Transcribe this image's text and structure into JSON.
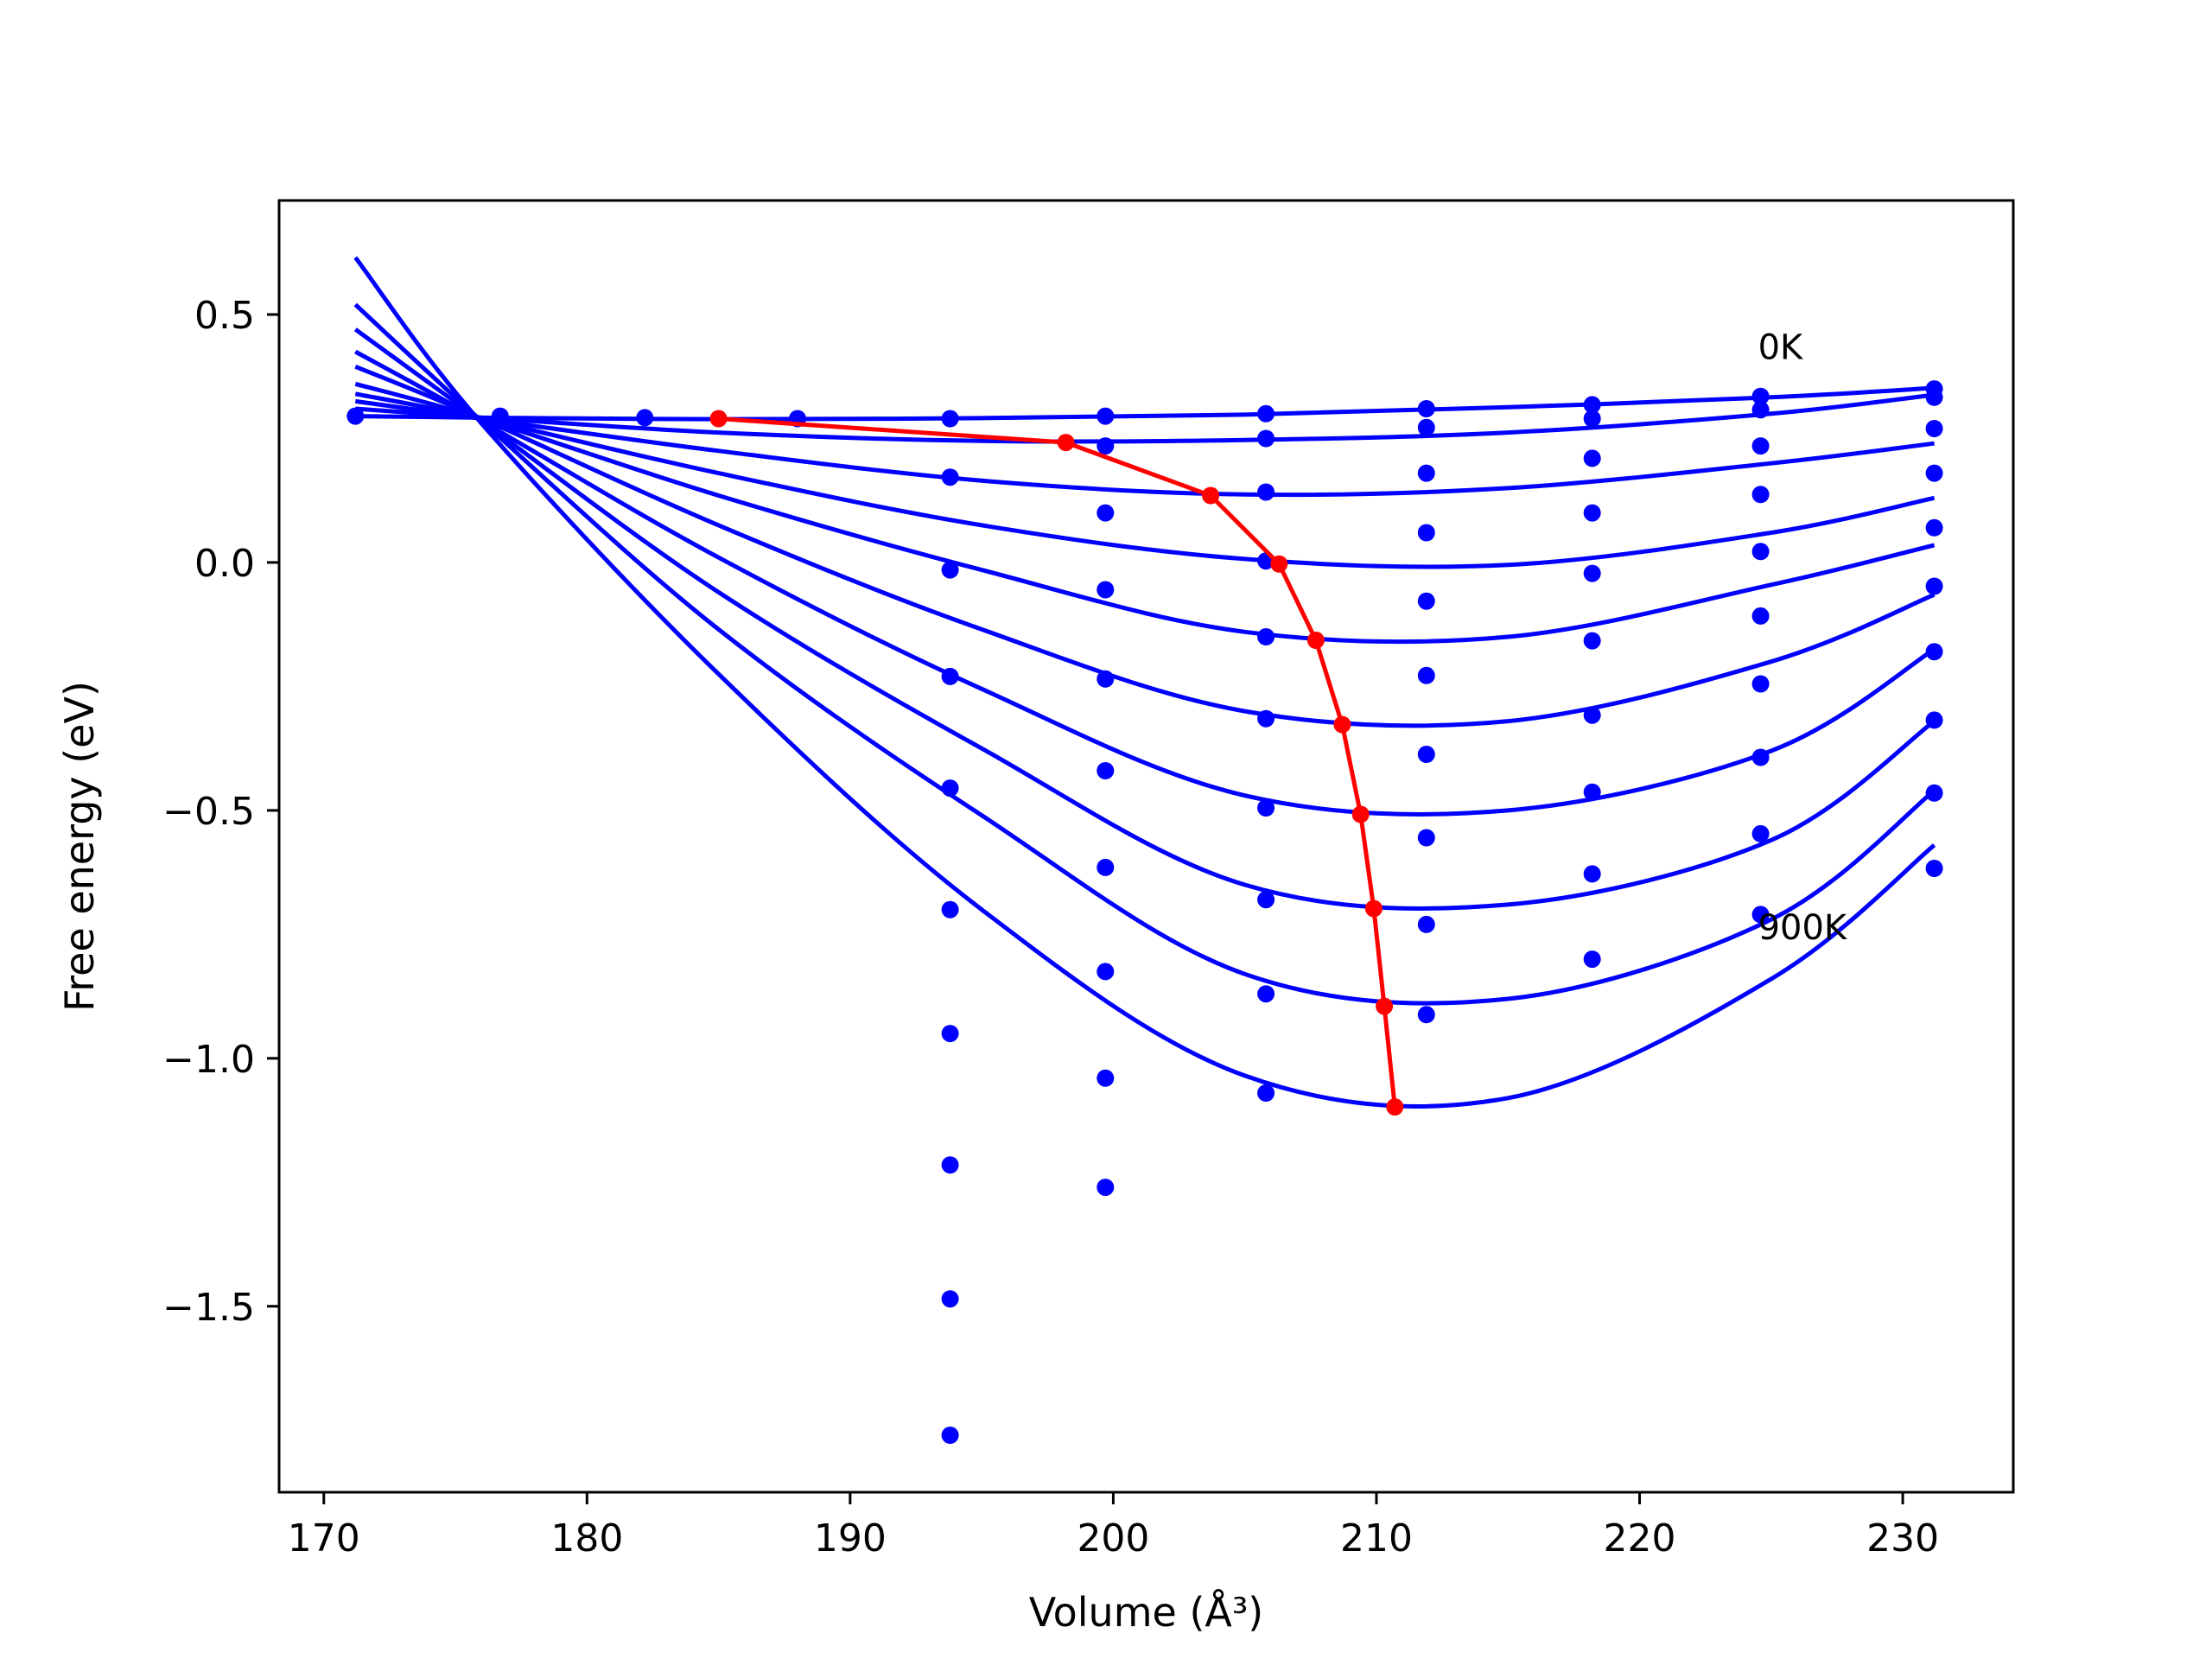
{
  "chart_data": {
    "type": "scatter",
    "title": "",
    "xlabel": "Volume (Å³)",
    "ylabel": "Free energy (eV)",
    "xlim": [
      168.3,
      234.2
    ],
    "ylim": [
      -1.875,
      0.73
    ],
    "xticks": [
      170,
      180,
      190,
      200,
      210,
      220,
      230
    ],
    "yticks": [
      0.5,
      0.0,
      -0.5,
      -1.0,
      -1.5
    ],
    "xtick_labels": [
      "170",
      "180",
      "190",
      "200",
      "210",
      "220",
      "230"
    ],
    "ytick_labels": [
      "0.5",
      "0.0",
      "−0.5",
      "−1.0",
      "−1.5"
    ],
    "grid": false,
    "legend": "none",
    "annotations": [
      {
        "text": "0K",
        "x": 224.5,
        "y": 0.41
      },
      {
        "text": "900K",
        "x": 224.5,
        "y": -0.76
      }
    ],
    "colors": {
      "fit_curves": "#0000ff",
      "data_points": "#0000ff",
      "minimum_path": "#ff0000"
    },
    "fit_curves": [
      {
        "x": [
          171.2,
          176.0,
          185.0,
          195.0,
          205.0,
          215.0,
          225.0,
          231.2
        ],
        "y": [
          0.295,
          0.292,
          0.289,
          0.291,
          0.298,
          0.313,
          0.333,
          0.352
        ]
      },
      {
        "x": [
          171.2,
          176.0,
          185.0,
          195.0,
          205.0,
          215.0,
          225.0,
          231.2
        ],
        "y": [
          0.31,
          0.292,
          0.262,
          0.245,
          0.247,
          0.262,
          0.3,
          0.338
        ]
      },
      {
        "x": [
          171.2,
          176.0,
          185.0,
          195.0,
          205.0,
          215.0,
          225.0,
          231.2
        ],
        "y": [
          0.325,
          0.29,
          0.225,
          0.165,
          0.137,
          0.15,
          0.2,
          0.24
        ]
      },
      {
        "x": [
          171.2,
          176.0,
          185.0,
          195.0,
          205.0,
          215.0,
          225.0,
          231.2
        ],
        "y": [
          0.34,
          0.29,
          0.18,
          0.075,
          0.007,
          -0.005,
          0.06,
          0.13
        ]
      },
      {
        "x": [
          171.2,
          176.0,
          185.0,
          195.0,
          205.0,
          215.0,
          225.0,
          231.2
        ],
        "y": [
          0.36,
          0.29,
          0.135,
          -0.015,
          -0.14,
          -0.15,
          -0.045,
          0.035
        ]
      },
      {
        "x": [
          171.2,
          176.0,
          185.0,
          195.0,
          205.0,
          215.0,
          225.0,
          231.2
        ],
        "y": [
          0.395,
          0.29,
          0.075,
          -0.135,
          -0.3,
          -0.32,
          -0.2,
          -0.065
        ]
      },
      {
        "x": [
          171.2,
          176.0,
          185.0,
          195.0,
          205.0,
          215.0,
          225.0,
          231.2
        ],
        "y": [
          0.425,
          0.285,
          0.01,
          -0.255,
          -0.47,
          -0.5,
          -0.38,
          -0.175
        ]
      },
      {
        "x": [
          171.2,
          176.0,
          185.0,
          195.0,
          205.0,
          215.0,
          225.0,
          231.2
        ],
        "y": [
          0.47,
          0.285,
          -0.06,
          -0.375,
          -0.65,
          -0.69,
          -0.56,
          -0.32
        ]
      },
      {
        "x": [
          171.2,
          176.0,
          185.0,
          195.0,
          205.0,
          215.0,
          225.0,
          231.2
        ],
        "y": [
          0.52,
          0.285,
          -0.135,
          -0.51,
          -0.83,
          -0.88,
          -0.72,
          -0.46
        ]
      },
      {
        "x": [
          171.2,
          176.0,
          185.0,
          195.0,
          205.0,
          215.0,
          225.0,
          231.2
        ],
        "y": [
          0.615,
          0.28,
          -0.225,
          -0.7,
          -1.035,
          -1.08,
          -0.84,
          -0.57
        ]
      }
    ],
    "data_points": [
      {
        "x": 171.2,
        "y": 0.295
      },
      {
        "x": 176.7,
        "y": 0.295
      },
      {
        "x": 182.2,
        "y": 0.292
      },
      {
        "x": 188.0,
        "y": 0.29
      },
      {
        "x": 193.8,
        "y": 0.29
      },
      {
        "x": 193.8,
        "y": 0.172
      },
      {
        "x": 193.8,
        "y": -0.015
      },
      {
        "x": 193.8,
        "y": -0.23
      },
      {
        "x": 193.8,
        "y": -0.455
      },
      {
        "x": 193.8,
        "y": -0.7
      },
      {
        "x": 193.8,
        "y": -0.95
      },
      {
        "x": 193.8,
        "y": -1.215
      },
      {
        "x": 193.8,
        "y": -1.485
      },
      {
        "x": 193.8,
        "y": -1.76
      },
      {
        "x": 199.7,
        "y": 0.295
      },
      {
        "x": 199.7,
        "y": 0.235
      },
      {
        "x": 199.7,
        "y": 0.1
      },
      {
        "x": 199.7,
        "y": -0.055
      },
      {
        "x": 199.7,
        "y": -0.235
      },
      {
        "x": 199.7,
        "y": -0.42
      },
      {
        "x": 199.7,
        "y": -0.615
      },
      {
        "x": 199.7,
        "y": -0.825
      },
      {
        "x": 199.7,
        "y": -1.04
      },
      {
        "x": 199.7,
        "y": -1.26
      },
      {
        "x": 205.8,
        "y": 0.3
      },
      {
        "x": 205.8,
        "y": 0.25
      },
      {
        "x": 205.8,
        "y": 0.142
      },
      {
        "x": 205.8,
        "y": 0.003
      },
      {
        "x": 205.8,
        "y": -0.15
      },
      {
        "x": 205.8,
        "y": -0.315
      },
      {
        "x": 205.8,
        "y": -0.495
      },
      {
        "x": 205.8,
        "y": -0.68
      },
      {
        "x": 205.8,
        "y": -0.87
      },
      {
        "x": 205.8,
        "y": -1.07
      },
      {
        "x": 211.9,
        "y": 0.31
      },
      {
        "x": 211.9,
        "y": 0.272
      },
      {
        "x": 211.9,
        "y": 0.18
      },
      {
        "x": 211.9,
        "y": 0.06
      },
      {
        "x": 211.9,
        "y": -0.078
      },
      {
        "x": 211.9,
        "y": -0.228
      },
      {
        "x": 211.9,
        "y": -0.387
      },
      {
        "x": 211.9,
        "y": -0.555
      },
      {
        "x": 211.9,
        "y": -0.73
      },
      {
        "x": 211.9,
        "y": -0.912
      },
      {
        "x": 218.2,
        "y": 0.318
      },
      {
        "x": 218.2,
        "y": 0.29
      },
      {
        "x": 218.2,
        "y": 0.21
      },
      {
        "x": 218.2,
        "y": 0.1
      },
      {
        "x": 218.2,
        "y": -0.022
      },
      {
        "x": 218.2,
        "y": -0.158
      },
      {
        "x": 218.2,
        "y": -0.308
      },
      {
        "x": 218.2,
        "y": -0.463
      },
      {
        "x": 218.2,
        "y": -0.628
      },
      {
        "x": 218.2,
        "y": -0.8
      },
      {
        "x": 224.6,
        "y": 0.335
      },
      {
        "x": 224.6,
        "y": 0.308
      },
      {
        "x": 224.6,
        "y": 0.235
      },
      {
        "x": 224.6,
        "y": 0.137
      },
      {
        "x": 224.6,
        "y": 0.022
      },
      {
        "x": 224.6,
        "y": -0.108
      },
      {
        "x": 224.6,
        "y": -0.245
      },
      {
        "x": 224.6,
        "y": -0.393
      },
      {
        "x": 224.6,
        "y": -0.547
      },
      {
        "x": 224.6,
        "y": -0.71
      },
      {
        "x": 231.2,
        "y": 0.35
      },
      {
        "x": 231.2,
        "y": 0.333
      },
      {
        "x": 231.2,
        "y": 0.27
      },
      {
        "x": 231.2,
        "y": 0.18
      },
      {
        "x": 231.2,
        "y": 0.07
      },
      {
        "x": 231.2,
        "y": -0.048
      },
      {
        "x": 231.2,
        "y": -0.18
      },
      {
        "x": 231.2,
        "y": -0.318
      },
      {
        "x": 231.2,
        "y": -0.465
      },
      {
        "x": 231.2,
        "y": -0.617
      }
    ],
    "minimum_path": {
      "x": [
        185.0,
        198.2,
        203.7,
        206.3,
        207.7,
        208.7,
        209.4,
        209.9,
        210.3,
        210.7
      ],
      "y": [
        0.29,
        0.242,
        0.135,
        -0.003,
        -0.157,
        -0.327,
        -0.508,
        -0.698,
        -0.895,
        -1.098
      ]
    }
  }
}
